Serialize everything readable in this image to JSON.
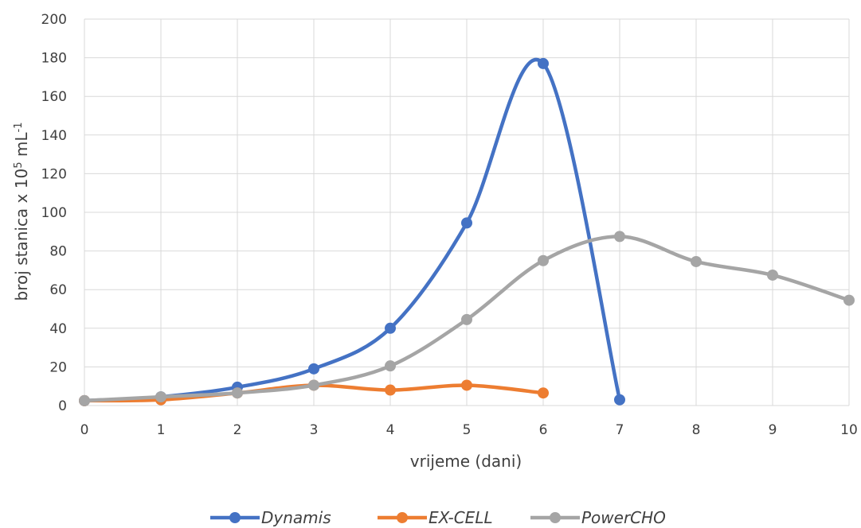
{
  "chart_data": {
    "type": "line",
    "smooth": true,
    "xlabel": "vrijeme (dani)",
    "ylabel": {
      "base": "broj stanica x 10",
      "sup1": "5",
      "mid": " mL",
      "sup2": "-1"
    },
    "xlim": [
      0,
      10
    ],
    "ylim": [
      0,
      200
    ],
    "xticks": [
      "0",
      "1",
      "2",
      "3",
      "4",
      "5",
      "6",
      "7",
      "8",
      "9",
      "10"
    ],
    "yticks": [
      "0",
      "20",
      "40",
      "60",
      "80",
      "100",
      "120",
      "140",
      "160",
      "180",
      "200"
    ],
    "grid": true,
    "legend_position": "bottom",
    "series": [
      {
        "name": "Dynamis",
        "color": "#4472c4",
        "x": [
          0,
          1,
          2,
          3,
          4,
          5,
          6,
          7
        ],
        "y": [
          2.5,
          4.5,
          9.5,
          19,
          40,
          94.5,
          177,
          3
        ]
      },
      {
        "name": "EX-CELL",
        "color": "#ed7d31",
        "x": [
          0,
          1,
          2,
          3,
          4,
          5,
          6
        ],
        "y": [
          2.5,
          3,
          6.5,
          10.5,
          8,
          10.5,
          6.5
        ]
      },
      {
        "name": "PowerCHO",
        "color": "#a5a5a5",
        "x": [
          0,
          1,
          2,
          3,
          4,
          5,
          6,
          7,
          8,
          9,
          10
        ],
        "y": [
          2.5,
          4.5,
          6.5,
          10.5,
          20.5,
          44.5,
          75,
          87.5,
          74.5,
          67.5,
          54.5
        ]
      }
    ]
  }
}
